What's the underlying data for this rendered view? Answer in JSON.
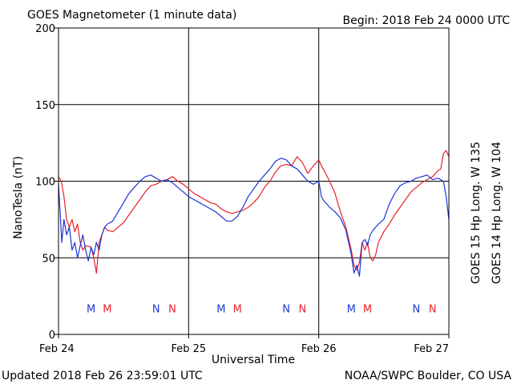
{
  "title": "GOES Magnetometer (1 minute data)",
  "begin_label": "Begin:  2018 Feb 24 0000 UTC",
  "updated_label": "Updated 2018 Feb 26 23:59:01 UTC",
  "credit_label": "NOAA/SWPC Boulder, CO USA",
  "colors": {
    "goes15": "#e8202a",
    "goes14": "#1d35d8",
    "axis": "#000000"
  },
  "chart_data": {
    "type": "line",
    "xlabel": "Universal Time",
    "ylabel": "NanoTesla (nT)",
    "ylim": [
      0,
      200
    ],
    "xlim_hours": [
      0,
      72
    ],
    "yticks": [
      0,
      50,
      100,
      150,
      200
    ],
    "xticks": [
      {
        "label": "Feb 24",
        "hour": 0
      },
      {
        "label": "Feb 25",
        "hour": 24
      },
      {
        "label": "Feb 26",
        "hour": 48
      },
      {
        "label": "Feb 27",
        "hour": 72
      }
    ],
    "grid": true,
    "legend_placement": "right, vertical",
    "series": [
      {
        "name": "GOES 15 Hp  Long. W 135",
        "color": "#e8202a",
        "points": [
          [
            0,
            103
          ],
          [
            0.5,
            100
          ],
          [
            1,
            90
          ],
          [
            1.5,
            75
          ],
          [
            2,
            70
          ],
          [
            2.5,
            75
          ],
          [
            3,
            67
          ],
          [
            3.5,
            72
          ],
          [
            4,
            60
          ],
          [
            4.5,
            55
          ],
          [
            5,
            58
          ],
          [
            6,
            57
          ],
          [
            6.5,
            50
          ],
          [
            7,
            40
          ],
          [
            7.5,
            60
          ],
          [
            8,
            65
          ],
          [
            8.5,
            70
          ],
          [
            9,
            68
          ],
          [
            10,
            67
          ],
          [
            11,
            70
          ],
          [
            12,
            73
          ],
          [
            13,
            78
          ],
          [
            14,
            83
          ],
          [
            15,
            88
          ],
          [
            16,
            93
          ],
          [
            17,
            97
          ],
          [
            18,
            98
          ],
          [
            19,
            100
          ],
          [
            20,
            101
          ],
          [
            21,
            103
          ],
          [
            22,
            100
          ],
          [
            23,
            98
          ],
          [
            24,
            95
          ],
          [
            25,
            92
          ],
          [
            26,
            90
          ],
          [
            27,
            88
          ],
          [
            28,
            86
          ],
          [
            29,
            85
          ],
          [
            30,
            82
          ],
          [
            31,
            80
          ],
          [
            32,
            79
          ],
          [
            33,
            80
          ],
          [
            34,
            81
          ],
          [
            35,
            83
          ],
          [
            36,
            86
          ],
          [
            37,
            90
          ],
          [
            38,
            96
          ],
          [
            39,
            100
          ],
          [
            40,
            106
          ],
          [
            41,
            110
          ],
          [
            42,
            111
          ],
          [
            43,
            110
          ],
          [
            44,
            116
          ],
          [
            45,
            112
          ],
          [
            46,
            105
          ],
          [
            47,
            110
          ],
          [
            48,
            114
          ],
          [
            48.5,
            110
          ],
          [
            49,
            107
          ],
          [
            50,
            100
          ],
          [
            51,
            92
          ],
          [
            52,
            80
          ],
          [
            53,
            70
          ],
          [
            54,
            55
          ],
          [
            54.5,
            45
          ],
          [
            55,
            42
          ],
          [
            55.5,
            47
          ],
          [
            56,
            60
          ],
          [
            56.5,
            55
          ],
          [
            57,
            60
          ],
          [
            57.5,
            50
          ],
          [
            58,
            48
          ],
          [
            58.5,
            52
          ],
          [
            59,
            60
          ],
          [
            60,
            67
          ],
          [
            61,
            72
          ],
          [
            62,
            78
          ],
          [
            63,
            83
          ],
          [
            64,
            88
          ],
          [
            65,
            93
          ],
          [
            66,
            96
          ],
          [
            67,
            99
          ],
          [
            68,
            101
          ],
          [
            69,
            103
          ],
          [
            70,
            107
          ],
          [
            70.5,
            108
          ],
          [
            71,
            118
          ],
          [
            71.5,
            120
          ],
          [
            72,
            116
          ]
        ]
      },
      {
        "name": "GOES 14 Hp  Long. W 104",
        "color": "#1d35d8",
        "points": [
          [
            0,
            98
          ],
          [
            0.3,
            80
          ],
          [
            0.6,
            60
          ],
          [
            1,
            75
          ],
          [
            1.5,
            65
          ],
          [
            2,
            70
          ],
          [
            2.5,
            55
          ],
          [
            3,
            60
          ],
          [
            3.5,
            50
          ],
          [
            4,
            58
          ],
          [
            4.5,
            65
          ],
          [
            5,
            55
          ],
          [
            5.5,
            48
          ],
          [
            6,
            57
          ],
          [
            6.5,
            52
          ],
          [
            7,
            60
          ],
          [
            7.5,
            55
          ],
          [
            8,
            65
          ],
          [
            8.5,
            70
          ],
          [
            9,
            72
          ],
          [
            10,
            74
          ],
          [
            11,
            80
          ],
          [
            12,
            86
          ],
          [
            13,
            92
          ],
          [
            14,
            96
          ],
          [
            15,
            100
          ],
          [
            16,
            103
          ],
          [
            17,
            104
          ],
          [
            18,
            102
          ],
          [
            19,
            100
          ],
          [
            20,
            101
          ],
          [
            21,
            99
          ],
          [
            22,
            96
          ],
          [
            23,
            93
          ],
          [
            24,
            90
          ],
          [
            25,
            88
          ],
          [
            26,
            86
          ],
          [
            27,
            84
          ],
          [
            28,
            82
          ],
          [
            29,
            80
          ],
          [
            30,
            77
          ],
          [
            31,
            74
          ],
          [
            32,
            74
          ],
          [
            33,
            77
          ],
          [
            34,
            83
          ],
          [
            35,
            90
          ],
          [
            36,
            95
          ],
          [
            37,
            100
          ],
          [
            38,
            104
          ],
          [
            39,
            108
          ],
          [
            40,
            113
          ],
          [
            41,
            115
          ],
          [
            42,
            114
          ],
          [
            43,
            110
          ],
          [
            44,
            108
          ],
          [
            45,
            104
          ],
          [
            46,
            100
          ],
          [
            47,
            98
          ],
          [
            48,
            100
          ],
          [
            48.5,
            90
          ],
          [
            49,
            87
          ],
          [
            50,
            83
          ],
          [
            51,
            80
          ],
          [
            52,
            76
          ],
          [
            53,
            68
          ],
          [
            54,
            52
          ],
          [
            54.5,
            40
          ],
          [
            55,
            45
          ],
          [
            55.5,
            38
          ],
          [
            56,
            60
          ],
          [
            56.5,
            62
          ],
          [
            57,
            58
          ],
          [
            57.5,
            65
          ],
          [
            58,
            68
          ],
          [
            59,
            72
          ],
          [
            60,
            75
          ],
          [
            61,
            85
          ],
          [
            62,
            92
          ],
          [
            63,
            97
          ],
          [
            64,
            99
          ],
          [
            65,
            100
          ],
          [
            66,
            102
          ],
          [
            67,
            103
          ],
          [
            68,
            104
          ],
          [
            69,
            101
          ],
          [
            70,
            102
          ],
          [
            71,
            100
          ],
          [
            71.5,
            90
          ],
          [
            72,
            75
          ]
        ]
      }
    ],
    "annotations": [
      {
        "text": "M",
        "hour": 6,
        "color": "#1d35d8"
      },
      {
        "text": "M",
        "hour": 9,
        "color": "#e8202a"
      },
      {
        "text": "N",
        "hour": 18,
        "color": "#1d35d8"
      },
      {
        "text": "N",
        "hour": 21,
        "color": "#e8202a"
      },
      {
        "text": "M",
        "hour": 30,
        "color": "#1d35d8"
      },
      {
        "text": "M",
        "hour": 33,
        "color": "#e8202a"
      },
      {
        "text": "N",
        "hour": 42,
        "color": "#1d35d8"
      },
      {
        "text": "N",
        "hour": 45,
        "color": "#e8202a"
      },
      {
        "text": "M",
        "hour": 54,
        "color": "#1d35d8"
      },
      {
        "text": "M",
        "hour": 57,
        "color": "#e8202a"
      },
      {
        "text": "N",
        "hour": 66,
        "color": "#1d35d8"
      },
      {
        "text": "N",
        "hour": 69,
        "color": "#e8202a"
      }
    ],
    "annotation_level": 17
  }
}
